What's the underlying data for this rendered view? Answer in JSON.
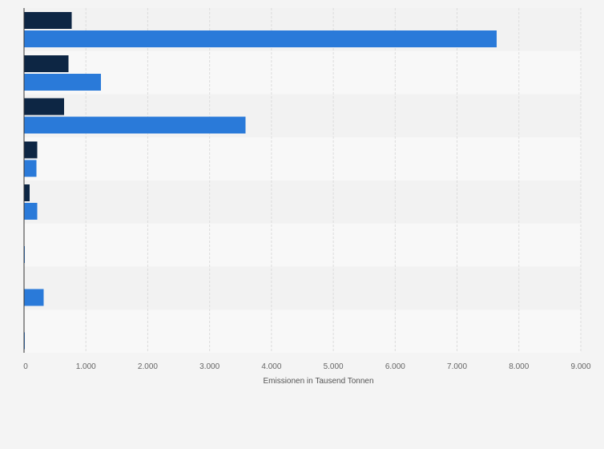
{
  "chart_data": {
    "type": "bar",
    "orientation": "horizontal",
    "title": "",
    "xlabel": "Emissionen in Tausend Tonnen",
    "ylabel": "",
    "xlim": [
      0,
      9000
    ],
    "x_ticks": [
      "0",
      "1.000",
      "2.000",
      "3.000",
      "4.000",
      "5.000",
      "6.000",
      "7.000",
      "8.000",
      "9.000"
    ],
    "grid": true,
    "legend": "none",
    "categories": [
      "",
      "",
      "",
      "",
      "",
      "",
      "",
      ""
    ],
    "series": [
      {
        "color": "#0d2644",
        "values": [
          770,
          720,
          650,
          215,
          90,
          0,
          0,
          0
        ]
      },
      {
        "color": "#2a7ad9",
        "values": [
          7640,
          1240,
          3580,
          200,
          215,
          5,
          320,
          5
        ]
      }
    ]
  }
}
